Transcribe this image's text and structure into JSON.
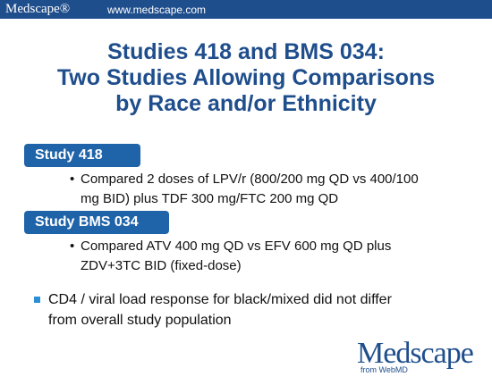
{
  "header": {
    "brand": "Medscape®",
    "url": "www.medscape.com"
  },
  "title": {
    "line1": "Studies 418 and BMS 034:",
    "line2": "Two Studies Allowing Comparisons",
    "line3": "by Race and/or Ethnicity"
  },
  "studies": [
    {
      "label": "Study 418",
      "bullet_line1": "Compared 2 doses of LPV/r (800/200 mg QD vs 400/100",
      "bullet_line2": "mg BID) plus TDF 300 mg/FTC 200 mg QD"
    },
    {
      "label": "Study BMS 034",
      "bullet_line1": "Compared ATV 400 mg QD vs EFV 600 mg QD plus",
      "bullet_line2": "ZDV+3TC BID (fixed-dose)"
    }
  ],
  "conclusion": {
    "line1": "CD4 / viral load response for black/mixed did not differ",
    "line2": "from overall study population"
  },
  "logo": {
    "word": "Medscape",
    "tagline": "from WebMD"
  },
  "colors": {
    "brand_blue": "#1f4e8c",
    "pill_blue": "#1f63a8",
    "bullet_blue": "#2a8fd4"
  }
}
